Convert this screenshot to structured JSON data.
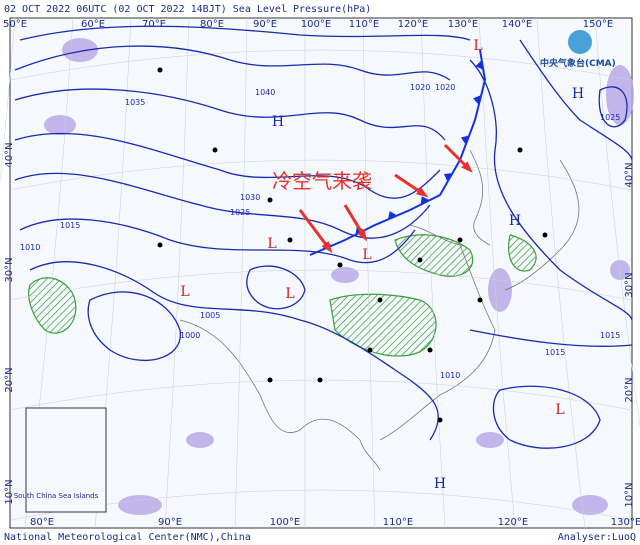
{
  "header": {
    "title": "02 OCT 2022 06UTC (02 OCT 2022 14BJT) Sea Level Pressure(hPa)",
    "logo": "中央气象台(CMA)"
  },
  "top_longitudes": [
    "50°E",
    "60°E",
    "70°E",
    "80°E",
    "90°E",
    "100°E",
    "110°E",
    "120°E",
    "130°E",
    "140°E",
    "150°E"
  ],
  "bottom_longitudes": [
    "80°E",
    "90°E",
    "100°E",
    "110°E",
    "120°E",
    "130°E"
  ],
  "left_latitudes": [
    "40°N",
    "30°N",
    "20°N",
    "10°N"
  ],
  "right_latitudes": [
    "40°N",
    "30°N",
    "20°N",
    "10°N"
  ],
  "centers": [
    {
      "label": "H"
    },
    {
      "label": "L"
    },
    {
      "label": "L"
    },
    {
      "label": "L"
    },
    {
      "label": "L"
    },
    {
      "label": "H"
    },
    {
      "label": "L"
    },
    {
      "label": "H"
    },
    {
      "label": "L"
    },
    {
      "label": "H"
    }
  ],
  "isobar_labels": [
    "1040",
    "1035",
    "1030",
    "1025",
    "1020",
    "1015",
    "1010",
    "1005",
    "1000",
    "1010",
    "1015",
    "1020",
    "1025",
    "1015"
  ],
  "annotation": "冷空气来袭",
  "inset": {
    "label": "South China Sea Islands"
  },
  "footer": {
    "left": "National Meteorological Center(NMC),China",
    "right": "Analyser:LuoQ"
  }
}
